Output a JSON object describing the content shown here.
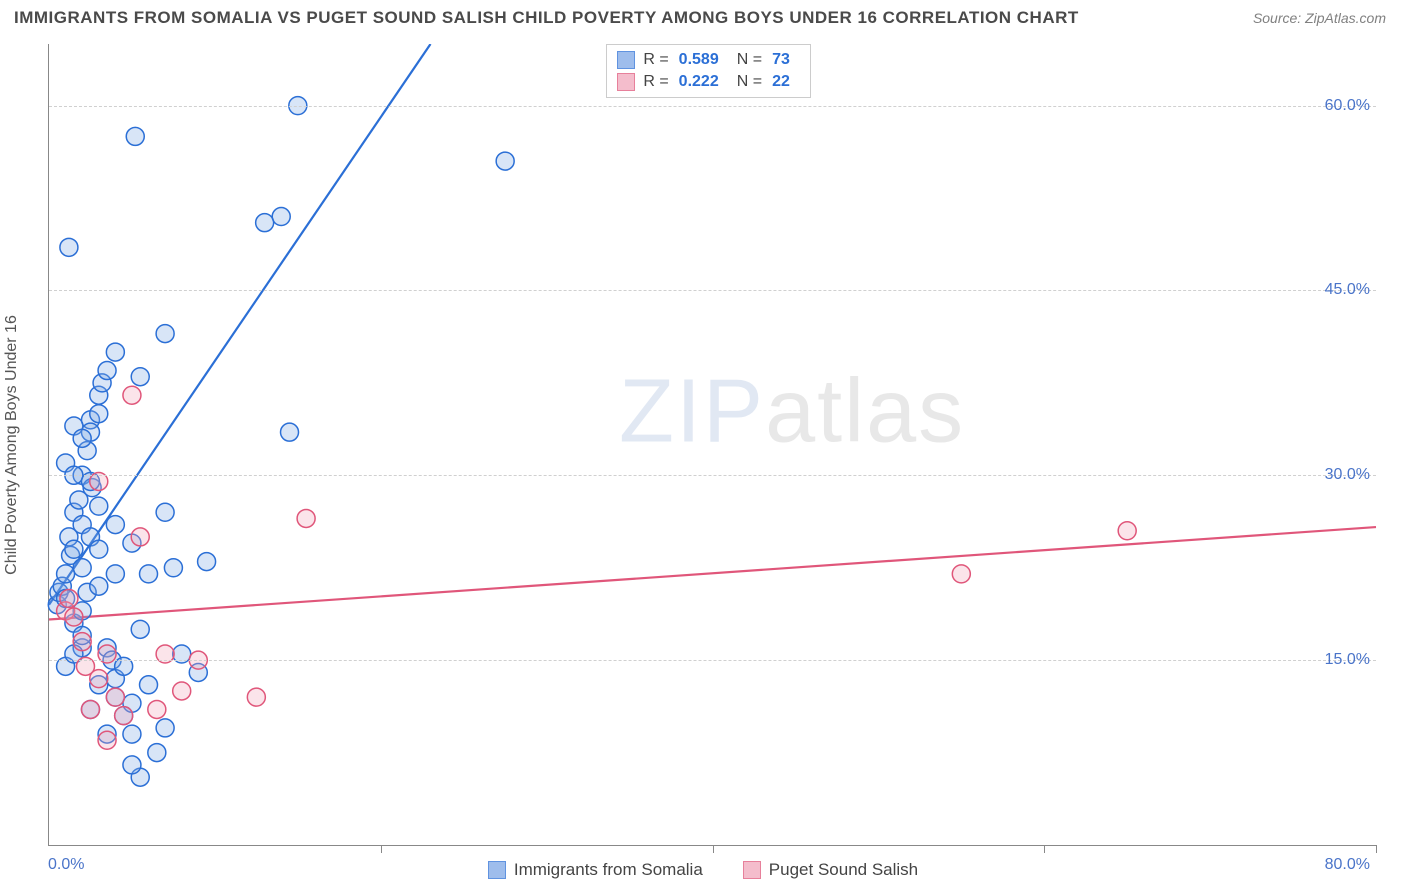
{
  "header": {
    "title": "IMMIGRANTS FROM SOMALIA VS PUGET SOUND SALISH CHILD POVERTY AMONG BOYS UNDER 16 CORRELATION CHART",
    "source_label": "Source: ",
    "source_value": "ZipAtlas.com"
  },
  "watermark": {
    "bold": "ZIP",
    "light": "atlas"
  },
  "chart": {
    "type": "scatter",
    "y_axis_label": "Child Poverty Among Boys Under 16",
    "x_domain": [
      0,
      80
    ],
    "y_domain": [
      0,
      65
    ],
    "x_min_label": "0.0%",
    "x_max_label": "80.0%",
    "x_ticks": [
      20,
      40,
      60,
      80
    ],
    "y_ticks": [
      {
        "v": 15,
        "label": "15.0%"
      },
      {
        "v": 30,
        "label": "30.0%"
      },
      {
        "v": 45,
        "label": "45.0%"
      },
      {
        "v": 60,
        "label": "60.0%"
      }
    ],
    "grid_color": "#d0d0d0",
    "axis_color": "#888888",
    "tick_label_color": "#4a74c9",
    "marker_radius": 9,
    "marker_stroke_width": 1.5,
    "marker_fill_opacity": 0.3,
    "trend_line_width": 2.2
  },
  "series": [
    {
      "key": "somalia",
      "label": "Immigrants from Somalia",
      "stroke": "#2b6fd6",
      "fill": "#7ea8e6",
      "r_value": "0.589",
      "n_value": "73",
      "trend": {
        "x1": 0,
        "y1": 19.5,
        "x2": 23,
        "y2": 65
      },
      "points": [
        [
          0.5,
          19.5
        ],
        [
          0.6,
          20.5
        ],
        [
          0.8,
          21.0
        ],
        [
          1.0,
          20.0
        ],
        [
          1.0,
          22.0
        ],
        [
          1.2,
          25.0
        ],
        [
          1.3,
          23.5
        ],
        [
          1.5,
          24.0
        ],
        [
          1.5,
          18.0
        ],
        [
          1.5,
          27.0
        ],
        [
          1.8,
          28.0
        ],
        [
          2.0,
          22.5
        ],
        [
          2.0,
          30.0
        ],
        [
          2.0,
          19.0
        ],
        [
          2.0,
          26.0
        ],
        [
          2.3,
          20.5
        ],
        [
          2.3,
          32.0
        ],
        [
          2.5,
          34.5
        ],
        [
          2.5,
          33.5
        ],
        [
          2.5,
          25.0
        ],
        [
          2.6,
          29.0
        ],
        [
          3.0,
          21.0
        ],
        [
          3.0,
          35.0
        ],
        [
          3.0,
          36.5
        ],
        [
          3.0,
          24.0
        ],
        [
          3.2,
          37.5
        ],
        [
          3.5,
          38.5
        ],
        [
          3.5,
          16.0
        ],
        [
          3.8,
          15.0
        ],
        [
          4.0,
          40.0
        ],
        [
          4.0,
          13.5
        ],
        [
          4.0,
          22.0
        ],
        [
          4.0,
          12.0
        ],
        [
          4.5,
          10.5
        ],
        [
          4.5,
          14.5
        ],
        [
          5.0,
          11.5
        ],
        [
          5.0,
          9.0
        ],
        [
          5.5,
          5.5
        ],
        [
          5.0,
          6.5
        ],
        [
          5.5,
          17.5
        ],
        [
          6.0,
          13.0
        ],
        [
          6.0,
          22.0
        ],
        [
          6.5,
          7.5
        ],
        [
          7.0,
          9.5
        ],
        [
          7.0,
          41.5
        ],
        [
          1.2,
          48.5
        ],
        [
          5.2,
          57.5
        ],
        [
          5.5,
          38.0
        ],
        [
          7.5,
          22.5
        ],
        [
          8.0,
          15.5
        ],
        [
          9.0,
          14.0
        ],
        [
          2.0,
          16.0
        ],
        [
          3.0,
          13.0
        ],
        [
          2.5,
          11.0
        ],
        [
          3.5,
          9.0
        ],
        [
          13.0,
          50.5
        ],
        [
          14.0,
          51.0
        ],
        [
          14.5,
          33.5
        ],
        [
          15.0,
          60.0
        ],
        [
          1.0,
          31.0
        ],
        [
          1.5,
          34.0
        ],
        [
          2.0,
          33.0
        ],
        [
          1.5,
          30.0
        ],
        [
          2.5,
          29.5
        ],
        [
          3.0,
          27.5
        ],
        [
          4.0,
          26.0
        ],
        [
          5.0,
          24.5
        ],
        [
          9.5,
          23.0
        ],
        [
          7.0,
          27.0
        ],
        [
          27.5,
          55.5
        ],
        [
          1.0,
          14.5
        ],
        [
          1.5,
          15.5
        ],
        [
          2.0,
          17.0
        ]
      ]
    },
    {
      "key": "salish",
      "label": "Puget Sound Salish",
      "stroke": "#e0567a",
      "fill": "#f1a7bb",
      "r_value": "0.222",
      "n_value": "22",
      "trend": {
        "x1": 0,
        "y1": 18.3,
        "x2": 80,
        "y2": 25.8
      },
      "points": [
        [
          1.0,
          19.0
        ],
        [
          1.2,
          20.0
        ],
        [
          1.5,
          18.5
        ],
        [
          2.0,
          16.5
        ],
        [
          2.2,
          14.5
        ],
        [
          2.5,
          11.0
        ],
        [
          3.0,
          13.5
        ],
        [
          3.5,
          15.5
        ],
        [
          3.5,
          8.5
        ],
        [
          4.0,
          12.0
        ],
        [
          4.5,
          10.5
        ],
        [
          6.5,
          11.0
        ],
        [
          7.0,
          15.5
        ],
        [
          8.0,
          12.5
        ],
        [
          9.0,
          15.0
        ],
        [
          12.5,
          12.0
        ],
        [
          5.0,
          36.5
        ],
        [
          5.5,
          25.0
        ],
        [
          15.5,
          26.5
        ],
        [
          3.0,
          29.5
        ],
        [
          55.0,
          22.0
        ],
        [
          65.0,
          25.5
        ]
      ]
    }
  ],
  "legend_top": {
    "r_label": "R =",
    "n_label": "N ="
  }
}
